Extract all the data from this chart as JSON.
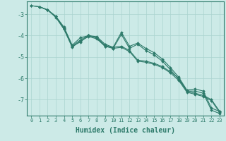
{
  "xlabel": "Humidex (Indice chaleur)",
  "ylabel": "",
  "xlim": [
    -0.5,
    23.5
  ],
  "ylim": [
    -7.75,
    -2.4
  ],
  "background_color": "#cceae7",
  "grid_color": "#aad4d0",
  "line_color": "#2d7a6a",
  "xtick_labels": [
    "0",
    "1",
    "2",
    "3",
    "4",
    "5",
    "6",
    "7",
    "8",
    "9",
    "10",
    "11",
    "12",
    "13",
    "14",
    "15",
    "16",
    "17",
    "18",
    "19",
    "20",
    "21",
    "22",
    "23"
  ],
  "yticks": [
    -7,
    -6,
    -5,
    -4,
    -3
  ],
  "series": [
    [
      null,
      -2.65,
      -2.8,
      -3.1,
      -3.6,
      -4.45,
      -4.1,
      -4.0,
      -4.05,
      -4.4,
      -4.55,
      -3.85,
      -4.5,
      -4.35,
      -4.6,
      -4.8,
      -5.1,
      -5.5,
      -5.95,
      -6.55,
      -6.5,
      -6.6,
      -7.4,
      -7.55
    ],
    [
      null,
      -2.65,
      -2.8,
      -3.1,
      -3.7,
      -4.5,
      -4.3,
      -4.0,
      -4.1,
      -4.45,
      -4.6,
      -3.95,
      -4.6,
      -4.4,
      -4.7,
      -4.9,
      -5.2,
      -5.6,
      -6.05,
      -6.6,
      -6.6,
      -6.7,
      -7.5,
      -7.65
    ],
    [
      -2.6,
      -2.65,
      -2.8,
      -3.1,
      -3.65,
      -4.5,
      -4.2,
      -4.0,
      -4.1,
      -4.5,
      -4.55,
      -4.5,
      -4.7,
      -5.15,
      -5.2,
      -5.3,
      -5.45,
      -5.7,
      -6.0,
      -6.6,
      -6.7,
      -6.8,
      -7.0,
      -7.55
    ],
    [
      -2.6,
      -2.65,
      -2.8,
      -3.15,
      -3.7,
      -4.55,
      -4.25,
      -4.05,
      -4.15,
      -4.5,
      -4.6,
      -4.55,
      -4.75,
      -5.2,
      -5.25,
      -5.35,
      -5.5,
      -5.75,
      -6.1,
      -6.65,
      -6.75,
      -6.85,
      -7.05,
      -7.6
    ]
  ],
  "xlabel_fontsize": 7,
  "xtick_fontsize": 5,
  "ytick_fontsize": 6,
  "linewidth": 0.8,
  "markersize": 2.0
}
